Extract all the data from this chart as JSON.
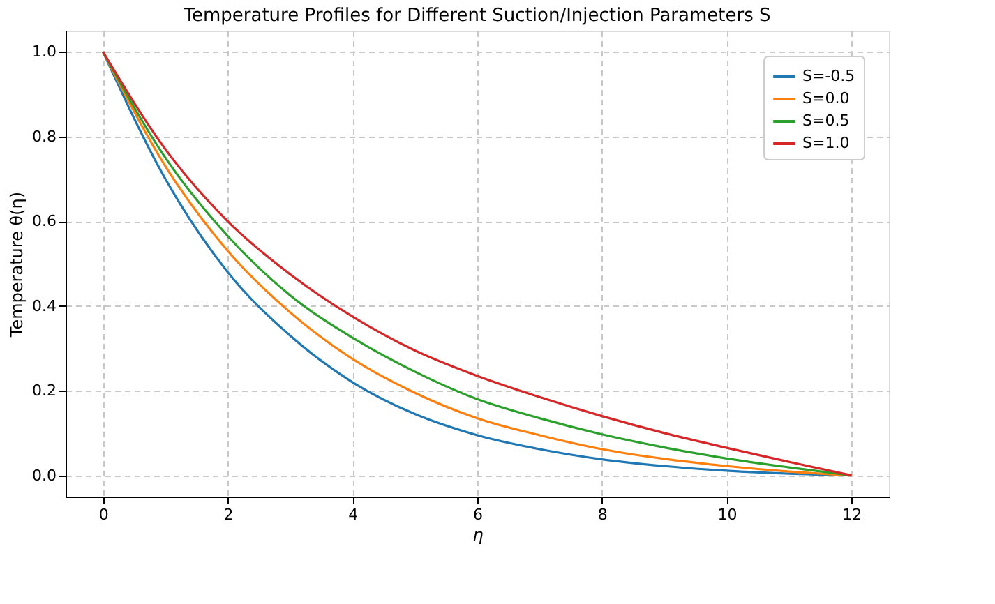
{
  "chart_data": {
    "type": "line",
    "title": "Temperature Profiles for Different Suction/Injection Parameters S",
    "xlabel": "η",
    "ylabel": "Temperature θ(η)",
    "x": [
      0,
      1,
      2,
      3,
      4,
      5,
      6,
      7,
      8,
      9,
      10,
      11,
      12
    ],
    "series": [
      {
        "name": "S=-0.5",
        "color": "#1f77b4",
        "values": [
          1,
          0.7,
          0.48,
          0.33,
          0.22,
          0.145,
          0.095,
          0.062,
          0.038,
          0.022,
          0.011,
          0.004,
          0
        ]
      },
      {
        "name": "S=0.0",
        "color": "#ff7f0e",
        "values": [
          1,
          0.73,
          0.53,
          0.385,
          0.275,
          0.195,
          0.135,
          0.095,
          0.062,
          0.039,
          0.022,
          0.009,
          0
        ]
      },
      {
        "name": "S=0.5",
        "color": "#2ca02c",
        "values": [
          1,
          0.75,
          0.565,
          0.425,
          0.325,
          0.245,
          0.18,
          0.135,
          0.097,
          0.066,
          0.04,
          0.019,
          0
        ]
      },
      {
        "name": "S=1.0",
        "color": "#d62728",
        "values": [
          1,
          0.77,
          0.6,
          0.475,
          0.375,
          0.295,
          0.235,
          0.185,
          0.14,
          0.1,
          0.065,
          0.032,
          0
        ]
      }
    ],
    "xlim": [
      -0.6,
      12.6
    ],
    "xticks": [
      0,
      2,
      4,
      6,
      8,
      10,
      12
    ],
    "ylim": [
      -0.05,
      1.05
    ],
    "yticks": [
      {
        "value": 0,
        "label": "0.0"
      },
      0.2,
      0.4,
      0.6,
      0.8,
      {
        "value": 1,
        "label": "1.0"
      }
    ],
    "grid": true,
    "legend": "top right",
    "marker": "none",
    "line_style": "solid"
  }
}
